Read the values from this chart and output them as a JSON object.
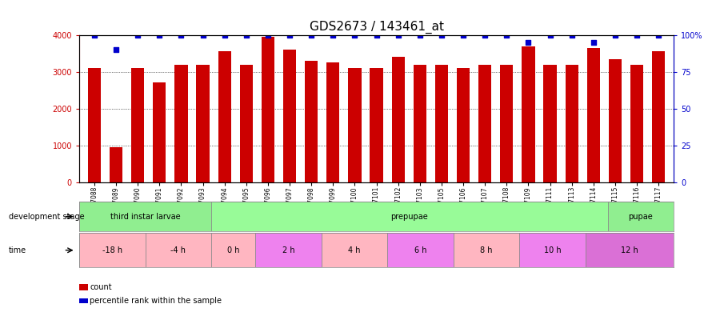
{
  "title": "GDS2673 / 143461_at",
  "samples": [
    "GSM67088",
    "GSM67089",
    "GSM67090",
    "GSM67091",
    "GSM67092",
    "GSM67093",
    "GSM67094",
    "GSM67095",
    "GSM67096",
    "GSM67097",
    "GSM67098",
    "GSM67099",
    "GSM67100",
    "GSM67101",
    "GSM67102",
    "GSM67103",
    "GSM67105",
    "GSM67106",
    "GSM67107",
    "GSM67108",
    "GSM67109",
    "GSM67111",
    "GSM67113",
    "GSM67114",
    "GSM67115",
    "GSM67116",
    "GSM67117"
  ],
  "counts": [
    3100,
    950,
    3100,
    2700,
    3200,
    3200,
    3550,
    3200,
    3950,
    3600,
    3300,
    3250,
    3100,
    3100,
    3400,
    3200,
    3200,
    3100,
    3200,
    3200,
    3700,
    3200,
    3200,
    3650,
    3350,
    3200,
    3550
  ],
  "percentile": [
    100,
    90,
    100,
    100,
    100,
    100,
    100,
    100,
    100,
    100,
    100,
    100,
    100,
    100,
    100,
    100,
    100,
    100,
    100,
    100,
    95,
    100,
    100,
    95,
    100,
    100,
    100
  ],
  "dev_stage_groups": [
    {
      "label": "third instar larvae",
      "start": 0,
      "end": 6,
      "color": "#90EE90"
    },
    {
      "label": "prepupae",
      "start": 6,
      "end": 24,
      "color": "#98FB98"
    },
    {
      "label": "pupae",
      "start": 24,
      "end": 27,
      "color": "#90EE90"
    }
  ],
  "time_groups": [
    {
      "label": "-18 h",
      "start": 0,
      "end": 3,
      "color": "#FFB6C1"
    },
    {
      "label": "-4 h",
      "start": 3,
      "end": 6,
      "color": "#FFB6C1"
    },
    {
      "label": "0 h",
      "start": 6,
      "end": 8,
      "color": "#FFB6C1"
    },
    {
      "label": "2 h",
      "start": 8,
      "end": 11,
      "color": "#EE82EE"
    },
    {
      "label": "4 h",
      "start": 11,
      "end": 14,
      "color": "#FFB6C1"
    },
    {
      "label": "6 h",
      "start": 14,
      "end": 17,
      "color": "#EE82EE"
    },
    {
      "label": "8 h",
      "start": 17,
      "end": 20,
      "color": "#FFB6C1"
    },
    {
      "label": "10 h",
      "start": 20,
      "end": 23,
      "color": "#EE82EE"
    },
    {
      "label": "12 h",
      "start": 23,
      "end": 27,
      "color": "#DA70D6"
    }
  ],
  "ylim_left": [
    0,
    4000
  ],
  "ylim_right": [
    0,
    100
  ],
  "yticks_left": [
    0,
    1000,
    2000,
    3000,
    4000
  ],
  "yticks_right": [
    0,
    25,
    50,
    75,
    100
  ],
  "bar_color": "#CC0000",
  "dot_color": "#0000CC",
  "bg_color": "#FFFFFF",
  "title_fontsize": 11,
  "tick_fontsize": 7
}
